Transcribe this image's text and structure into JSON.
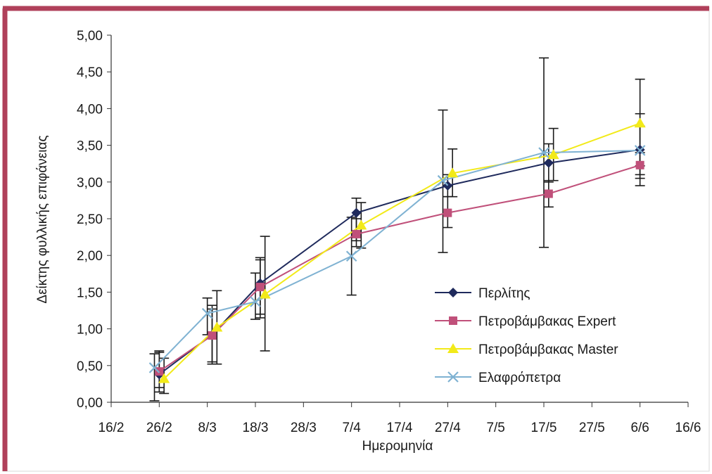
{
  "chart_data": {
    "type": "line",
    "xlabel": "Ημερομηνία",
    "ylabel": "Δείκτης φυλλικής επιφάνειας",
    "x_axis": {
      "type": "date",
      "ticks": [
        "2007-02-16",
        "2007-02-26",
        "2007-03-08",
        "2007-03-18",
        "2007-03-28",
        "2007-04-07",
        "2007-04-17",
        "2007-04-27",
        "2007-05-07",
        "2007-05-17",
        "2007-05-27",
        "2007-06-06",
        "2007-06-16"
      ],
      "tick_labels": [
        "16/2",
        "26/2",
        "8/3",
        "18/3",
        "28/3",
        "7/4",
        "17/4",
        "27/4",
        "7/5",
        "17/5",
        "27/5",
        "6/6",
        "16/6"
      ],
      "range": [
        "2007-02-16",
        "2007-06-16"
      ]
    },
    "y_axis": {
      "range": [
        0,
        5
      ],
      "ticks": [
        0,
        0.5,
        1,
        1.5,
        2,
        2.5,
        3,
        3.5,
        4,
        4.5,
        5
      ],
      "tick_labels": [
        "0,00",
        "0,50",
        "1,00",
        "1,50",
        "2,00",
        "2,50",
        "3,00",
        "3,50",
        "4,00",
        "4,50",
        "5,00"
      ]
    },
    "grid": false,
    "legend_position": "bottom-right",
    "series": [
      {
        "name": "Περλίτης",
        "color": "#1f2a5c",
        "marker": "diamond",
        "points": [
          {
            "x": "2007-02-26",
            "y": 0.38,
            "lo": 0.2,
            "hi": 0.68
          },
          {
            "x": "2007-03-09",
            "y": 0.92,
            "lo": 0.52,
            "hi": 1.32
          },
          {
            "x": "2007-03-19",
            "y": 1.62,
            "lo": 1.15,
            "hi": 1.97
          },
          {
            "x": "2007-04-08",
            "y": 2.58,
            "lo": 2.2,
            "hi": 2.78
          },
          {
            "x": "2007-04-27",
            "y": 2.95,
            "lo": 2.8,
            "hi": 3.1
          },
          {
            "x": "2007-05-18",
            "y": 3.26,
            "lo": 3.0,
            "hi": 3.52
          },
          {
            "x": "2007-06-06",
            "y": 3.44,
            "lo": 2.95,
            "hi": 3.93
          }
        ]
      },
      {
        "name": "Πετροβάμβακας Expert",
        "color": "#c0507a",
        "marker": "square",
        "points": [
          {
            "x": "2007-02-26",
            "y": 0.42,
            "lo": 0.14,
            "hi": 0.7
          },
          {
            "x": "2007-03-09",
            "y": 0.91,
            "lo": 0.55,
            "hi": 1.27
          },
          {
            "x": "2007-03-19",
            "y": 1.57,
            "lo": 1.2,
            "hi": 1.94
          },
          {
            "x": "2007-04-08",
            "y": 2.29,
            "lo": 2.12,
            "hi": 2.5
          },
          {
            "x": "2007-04-27",
            "y": 2.58,
            "lo": 2.38,
            "hi": 2.8
          },
          {
            "x": "2007-05-18",
            "y": 2.84,
            "lo": 2.66,
            "hi": 3.02
          },
          {
            "x": "2007-06-06",
            "y": 3.23,
            "lo": 3.05,
            "hi": 3.4
          }
        ]
      },
      {
        "name": "Πετροβάμβακας Master",
        "color": "#f2ea19",
        "marker": "triangle",
        "points": [
          {
            "x": "2007-02-27",
            "y": 0.32,
            "lo": 0.12,
            "hi": 0.6
          },
          {
            "x": "2007-03-10",
            "y": 1.02,
            "lo": 0.52,
            "hi": 1.52
          },
          {
            "x": "2007-03-20",
            "y": 1.47,
            "lo": 0.7,
            "hi": 2.26
          },
          {
            "x": "2007-04-09",
            "y": 2.41,
            "lo": 2.1,
            "hi": 2.72
          },
          {
            "x": "2007-04-28",
            "y": 3.12,
            "lo": 2.8,
            "hi": 3.45
          },
          {
            "x": "2007-05-19",
            "y": 3.37,
            "lo": 3.02,
            "hi": 3.73
          },
          {
            "x": "2007-06-06",
            "y": 3.8,
            "lo": 3.22,
            "hi": 4.4
          }
        ]
      },
      {
        "name": "Ελαφρόπετρα",
        "color": "#7fb2d2",
        "marker": "x",
        "points": [
          {
            "x": "2007-02-25",
            "y": 0.47,
            "lo": 0.02,
            "hi": 0.66
          },
          {
            "x": "2007-03-08",
            "y": 1.21,
            "lo": 0.92,
            "hi": 1.42
          },
          {
            "x": "2007-03-18",
            "y": 1.37,
            "lo": 1.13,
            "hi": 1.76
          },
          {
            "x": "2007-04-07",
            "y": 1.99,
            "lo": 1.46,
            "hi": 2.52
          },
          {
            "x": "2007-04-26",
            "y": 3.02,
            "lo": 2.04,
            "hi": 3.98
          },
          {
            "x": "2007-05-17",
            "y": 3.4,
            "lo": 2.11,
            "hi": 4.69
          },
          {
            "x": "2007-06-06",
            "y": 3.43,
            "lo": 3.1,
            "hi": 3.76
          }
        ]
      }
    ]
  },
  "colors": {
    "frame_border": "#b0405a",
    "axis": "#333333",
    "error_bar": "#1a1a1a"
  }
}
